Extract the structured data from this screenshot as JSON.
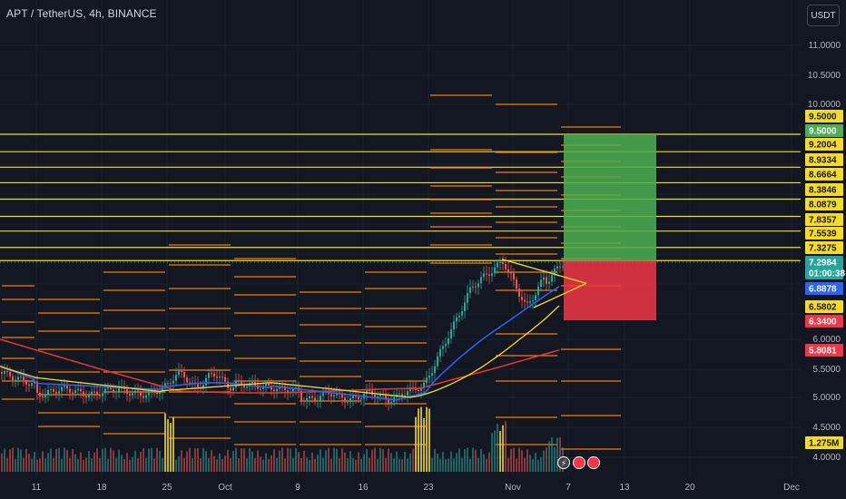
{
  "header": {
    "symbol": "APT / TetherUS, 4h, BINANCE",
    "currency_button": "USDT"
  },
  "colors": {
    "background": "#131722",
    "grid": "#1e222d",
    "yellow_line": "#f7dc1d",
    "orange_line": "#f57c00",
    "blue_ma": "#2962ff",
    "red_ma": "#e53935",
    "up_candle": "#26a69a",
    "down_candle": "#ef5350",
    "target_zone": "#4caf50",
    "stop_zone": "#f23645"
  },
  "price_scale": {
    "labels": [
      "11.0000",
      "10.5000",
      "10.0000",
      "6.0000",
      "5.5000",
      "5.0000",
      "4.5000",
      "4.0000"
    ]
  },
  "price_tags": [
    {
      "text": "9.5000",
      "bg": "#f7dc1d",
      "fg": "#131722"
    },
    {
      "text": "9.5000",
      "bg": "#4caf50",
      "fg": "#ffffff"
    },
    {
      "text": "9.2004",
      "bg": "#f7dc1d",
      "fg": "#131722"
    },
    {
      "text": "8.9334",
      "bg": "#f7dc1d",
      "fg": "#131722"
    },
    {
      "text": "8.6664",
      "bg": "#f7dc1d",
      "fg": "#131722"
    },
    {
      "text": "8.3846",
      "bg": "#f7dc1d",
      "fg": "#131722"
    },
    {
      "text": "8.0879",
      "bg": "#f7dc1d",
      "fg": "#131722"
    },
    {
      "text": "7.8357",
      "bg": "#f7dc1d",
      "fg": "#131722"
    },
    {
      "text": "7.5539",
      "bg": "#f7dc1d",
      "fg": "#131722"
    },
    {
      "text": "7.3275",
      "bg": "#f7dc1d",
      "fg": "#131722"
    },
    {
      "text": "7.2984",
      "bg": "#26a69a",
      "fg": "#ffffff"
    },
    {
      "text": "01:00:38",
      "bg": "#26a69a",
      "fg": "#ffffff"
    },
    {
      "text": "6.8878",
      "bg": "#2962ff",
      "fg": "#ffffff"
    },
    {
      "text": "6.5802",
      "bg": "#f7dc1d",
      "fg": "#131722"
    },
    {
      "text": "6.3400",
      "bg": "#f23645",
      "fg": "#ffffff"
    },
    {
      "text": "5.8081",
      "bg": "#f23645",
      "fg": "#ffffff"
    },
    {
      "text": "1.275M",
      "bg": "#f7dc1d",
      "fg": "#131722"
    }
  ],
  "horizontal_levels": [
    9.5,
    9.2004,
    8.9334,
    8.6664,
    8.3846,
    8.0879,
    7.8357,
    7.5539,
    7.3275
  ],
  "position": {
    "entry": 7.3275,
    "target": 9.5,
    "stop": 6.34
  },
  "moving_averages": {
    "blue_last": 6.8878,
    "red_last": 5.8081,
    "yellow_last": 6.5802
  },
  "last_price": 7.2984,
  "time_axis": [
    "11",
    "18",
    "25",
    "Oct",
    "9",
    "16",
    "23",
    "Nov",
    "7",
    "13",
    "20",
    "Dec"
  ],
  "volume_last": "1.275M"
}
